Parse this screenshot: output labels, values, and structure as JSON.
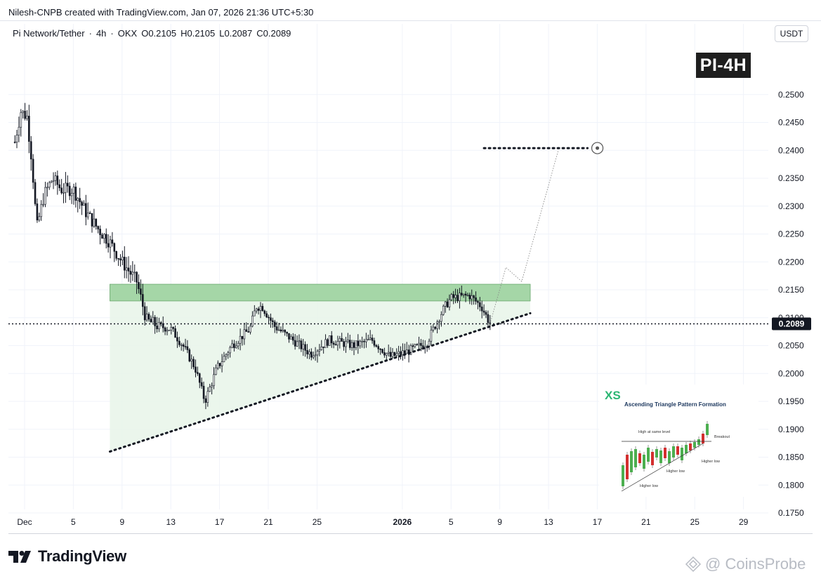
{
  "header": {
    "attribution": "Nilesh-CNPB created with TradingView.com, Jan 07, 2026 21:36 UTC+5:30"
  },
  "symbol": {
    "name": "Pi Network/Tether",
    "interval": "4h",
    "exchange": "OKX",
    "open": "O0.2105",
    "high": "H0.2105",
    "low": "L0.2087",
    "close": "C0.2089"
  },
  "currency": "USDT",
  "chart_label": "PI-4H",
  "branding": {
    "logo_text": "TradingView",
    "watermark": "@ CoinsProbe"
  },
  "inset": {
    "brand": "XS",
    "title": "Ascending Triangle Pattern Formation",
    "labels": [
      "High at same level",
      "Breakout",
      "Higher low",
      "Higher low",
      "Higher low"
    ]
  },
  "colors": {
    "candle": "#131722",
    "resistance_fill": "#a5d6a7",
    "triangle_fill": "#e8f5e9",
    "price_label_bg": "#131722",
    "inset_brand": "#2bb673"
  },
  "chart_data": {
    "type": "candlestick",
    "y_axis": {
      "min": 0.172,
      "max": 0.254,
      "ticks": [
        "0.2500",
        "0.2450",
        "0.2400",
        "0.2350",
        "0.2300",
        "0.2250",
        "0.2200",
        "0.2150",
        "0.2100",
        "0.2050",
        "0.2000",
        "0.1950",
        "0.1900",
        "0.1850",
        "0.1800",
        "0.1750"
      ]
    },
    "x_axis": {
      "ticks": [
        {
          "label": "Dec",
          "day": 1
        },
        {
          "label": "5",
          "day": 5
        },
        {
          "label": "9",
          "day": 9
        },
        {
          "label": "13",
          "day": 13
        },
        {
          "label": "17",
          "day": 17
        },
        {
          "label": "21",
          "day": 21
        },
        {
          "label": "25",
          "day": 25
        },
        {
          "label": "2026",
          "day": 32
        },
        {
          "label": "5",
          "day": 36
        },
        {
          "label": "9",
          "day": 40
        },
        {
          "label": "13",
          "day": 44
        },
        {
          "label": "17",
          "day": 48
        },
        {
          "label": "21",
          "day": 52
        },
        {
          "label": "25",
          "day": 56
        },
        {
          "label": "29",
          "day": 60
        }
      ]
    },
    "last_price": "0.2089",
    "price_path": [
      {
        "day": 0.2,
        "price": 0.2415
      },
      {
        "day": 0.7,
        "price": 0.247
      },
      {
        "day": 1.2,
        "price": 0.246
      },
      {
        "day": 1.6,
        "price": 0.238
      },
      {
        "day": 2.0,
        "price": 0.226
      },
      {
        "day": 2.6,
        "price": 0.232
      },
      {
        "day": 3.3,
        "price": 0.235
      },
      {
        "day": 4.0,
        "price": 0.233
      },
      {
        "day": 5.0,
        "price": 0.233
      },
      {
        "day": 6.0,
        "price": 0.229
      },
      {
        "day": 7.0,
        "price": 0.226
      },
      {
        "day": 8.0,
        "price": 0.2235
      },
      {
        "day": 9.0,
        "price": 0.22
      },
      {
        "day": 10.2,
        "price": 0.2165
      },
      {
        "day": 11.0,
        "price": 0.2095
      },
      {
        "day": 12.0,
        "price": 0.2085
      },
      {
        "day": 13.0,
        "price": 0.208
      },
      {
        "day": 14.0,
        "price": 0.205
      },
      {
        "day": 15.0,
        "price": 0.201
      },
      {
        "day": 15.8,
        "price": 0.195
      },
      {
        "day": 16.8,
        "price": 0.201
      },
      {
        "day": 18.0,
        "price": 0.205
      },
      {
        "day": 19.5,
        "price": 0.208
      },
      {
        "day": 20.0,
        "price": 0.212
      },
      {
        "day": 20.5,
        "price": 0.212
      },
      {
        "day": 21.5,
        "price": 0.2085
      },
      {
        "day": 23.0,
        "price": 0.206
      },
      {
        "day": 24.5,
        "price": 0.2035
      },
      {
        "day": 26.0,
        "price": 0.206
      },
      {
        "day": 28.0,
        "price": 0.205
      },
      {
        "day": 29.5,
        "price": 0.206
      },
      {
        "day": 31.0,
        "price": 0.203
      },
      {
        "day": 32.5,
        "price": 0.204
      },
      {
        "day": 34.0,
        "price": 0.2055
      },
      {
        "day": 35.0,
        "price": 0.21
      },
      {
        "day": 35.5,
        "price": 0.212
      },
      {
        "day": 36.0,
        "price": 0.2135
      },
      {
        "day": 37.5,
        "price": 0.214
      },
      {
        "day": 38.5,
        "price": 0.212
      },
      {
        "day": 39.2,
        "price": 0.2089
      }
    ],
    "annotations": {
      "resistance_zone": {
        "from_day": 8.0,
        "to_day": 42.5,
        "low": 0.213,
        "high": 0.216
      },
      "support_trendline": {
        "from": {
          "day": 8.0,
          "price": 0.186
        },
        "to": {
          "day": 42.5,
          "price": 0.2108
        }
      },
      "projection_path": [
        {
          "day": 39.2,
          "price": 0.2089
        },
        {
          "day": 40.5,
          "price": 0.219
        },
        {
          "day": 41.8,
          "price": 0.2165
        },
        {
          "day": 44.8,
          "price": 0.24
        }
      ],
      "target_level": {
        "from_day": 38.7,
        "to_day": 47.2,
        "price": 0.2404
      }
    }
  }
}
